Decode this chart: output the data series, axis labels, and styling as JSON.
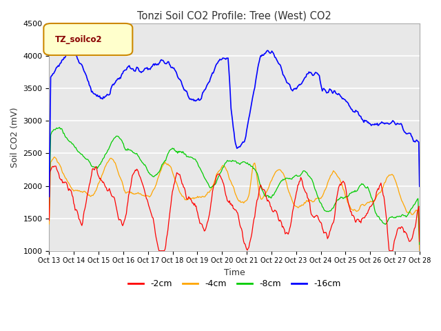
{
  "title": "Tonzi Soil CO2 Profile: Tree (West) CO2",
  "ylabel": "Soil CO2 (mV)",
  "xlabel": "Time",
  "legend_label": "TZ_soilco2",
  "series_labels": [
    "-2cm",
    "-4cm",
    "-8cm",
    "-16cm"
  ],
  "series_colors": [
    "#ff0000",
    "#ffa500",
    "#00cc00",
    "#0000ff"
  ],
  "ylim": [
    1000,
    4500
  ],
  "fig_bg_color": "#ffffff",
  "plot_bg_color": "#e8e8e8",
  "grid_color": "#ffffff",
  "legend_box_facecolor": "#ffffcc",
  "legend_box_edgecolor": "#cc8800",
  "legend_text_color": "#880000",
  "tick_labels": [
    "Oct 13",
    "Oct 14",
    "Oct 15",
    "Oct 16",
    "Oct 17",
    "Oct 18",
    "Oct 19",
    "Oct 20",
    "Oct 21",
    "Oct 22",
    "Oct 23",
    "Oct 24",
    "Oct 25",
    "Oct 26",
    "Oct 27",
    "Oct 28"
  ],
  "n_points": 500,
  "figsize": [
    6.4,
    4.8
  ],
  "dpi": 100
}
